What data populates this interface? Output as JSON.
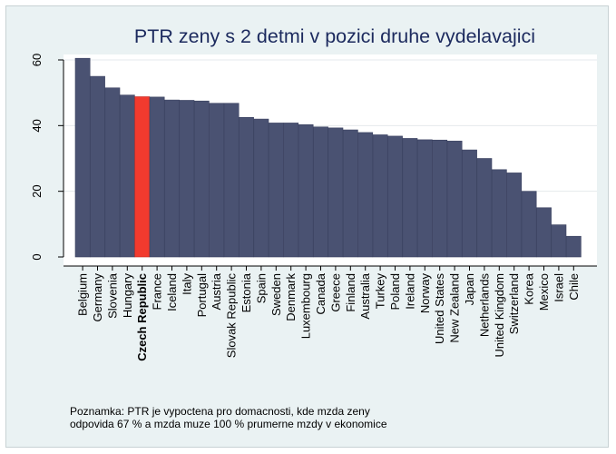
{
  "chart_data": {
    "type": "bar",
    "title": "PTR zeny s 2 detmi v pozici druhe vydelavajici",
    "xlabel": "",
    "ylabel": "",
    "ylim": [
      0,
      60
    ],
    "yticks": [
      0,
      20,
      40,
      60
    ],
    "grid": true,
    "legend": "none",
    "colors": {
      "bar": "#4a5272",
      "highlight": "#f23a2e",
      "background": "#eaf2f3",
      "plot": "#ffffff"
    },
    "highlight_category": "Czech Republic",
    "categories": [
      "Belgium",
      "Germany",
      "Slovenia",
      "Hungary",
      "Czech Republic",
      "France",
      "Iceland",
      "Italy",
      "Portugal",
      "Austria",
      "Slovak Republic",
      "Estonia",
      "Spain",
      "Sweden",
      "Denmark",
      "Luxembourg",
      "Canada",
      "Greece",
      "Finland",
      "Australia",
      "Turkey",
      "Poland",
      "Ireland",
      "Norway",
      "United States",
      "New Zealand",
      "Japan",
      "Netherlands",
      "United Kingdom",
      "Switzerland",
      "Korea",
      "Mexico",
      "Israel",
      "Chile"
    ],
    "values": [
      60.5,
      55,
      51.5,
      49.3,
      48.8,
      48.7,
      47.8,
      47.7,
      47.5,
      46.8,
      46.8,
      42.5,
      42,
      40.8,
      40.8,
      40.3,
      39.6,
      39.3,
      38.7,
      37.9,
      37.2,
      36.8,
      36.1,
      35.7,
      35.6,
      35.3,
      32.6,
      30,
      26.6,
      25.6,
      20,
      15,
      9.8,
      6.3
    ]
  },
  "note": {
    "line1": "Poznamka: PTR je vypoctena pro domacnosti, kde mzda zeny",
    "line2": "odpovida 67 % a mzda muze 100 % prumerne mzdy v ekonomice"
  }
}
